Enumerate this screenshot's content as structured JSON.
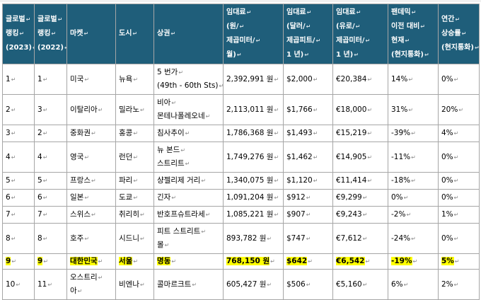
{
  "headers": [
    [
      "글로벌",
      "랭킹",
      "(2023)"
    ],
    [
      "글로벌",
      "랭킹",
      "(2022)"
    ],
    [
      "마켓"
    ],
    [
      "도시"
    ],
    [
      "상권"
    ],
    [
      "임대료",
      "(원/",
      "제곱미터/",
      "월)"
    ],
    [
      "임대료",
      "(달러/",
      "제곱피트/",
      "1 년)"
    ],
    [
      "임대료",
      "(유로/",
      "제곱미터/",
      "1 년)"
    ],
    [
      "팬데믹",
      "이전 대비",
      "현재",
      "(현지통화)"
    ],
    [
      "연간",
      "상승률",
      "(현지통화)"
    ]
  ],
  "rows": [
    {
      "cells": [
        [
          "1"
        ],
        [
          "1"
        ],
        [
          "미국"
        ],
        [
          "뉴욕"
        ],
        [
          "5 번가",
          "(49th - 60th Sts)"
        ],
        [
          "2,392,991 원"
        ],
        [
          "$2,000"
        ],
        [
          "€20,384"
        ],
        [
          "14%"
        ],
        [
          "0%"
        ]
      ],
      "highlight": false
    },
    {
      "cells": [
        [
          "2"
        ],
        [
          "3"
        ],
        [
          "이탈리아"
        ],
        [
          "밀라노"
        ],
        [
          "비아",
          "몬테나폴레오네"
        ],
        [
          "2,113,011 원"
        ],
        [
          "$1,766"
        ],
        [
          "€18,000"
        ],
        [
          "31%"
        ],
        [
          "20%"
        ]
      ],
      "highlight": false
    },
    {
      "cells": [
        [
          "3"
        ],
        [
          "2"
        ],
        [
          "중화권"
        ],
        [
          "홍콩"
        ],
        [
          "침사추이"
        ],
        [
          "1,786,368 원"
        ],
        [
          "$1,493"
        ],
        [
          "€15,219"
        ],
        [
          "-39%"
        ],
        [
          "4%"
        ]
      ],
      "highlight": false
    },
    {
      "cells": [
        [
          "4"
        ],
        [
          "4"
        ],
        [
          "영국"
        ],
        [
          "런던"
        ],
        [
          "뉴 본드",
          "스트리트"
        ],
        [
          "1,749,276 원"
        ],
        [
          "$1,462"
        ],
        [
          "€14,905"
        ],
        [
          "-11%"
        ],
        [
          "0%"
        ]
      ],
      "highlight": false
    },
    {
      "cells": [
        [
          "5"
        ],
        [
          "5"
        ],
        [
          "프랑스"
        ],
        [
          "파리"
        ],
        [
          "샹젤리제 거리"
        ],
        [
          "1,340,075 원"
        ],
        [
          "$1,120"
        ],
        [
          "€11,414"
        ],
        [
          "-18%"
        ],
        [
          "0%"
        ]
      ],
      "highlight": false
    },
    {
      "cells": [
        [
          "6"
        ],
        [
          "6"
        ],
        [
          "일본"
        ],
        [
          "도쿄"
        ],
        [
          "긴자"
        ],
        [
          "1,091,204 원"
        ],
        [
          "$912"
        ],
        [
          "€9,299"
        ],
        [
          "0%"
        ],
        [
          "0%"
        ]
      ],
      "highlight": false
    },
    {
      "cells": [
        [
          "7"
        ],
        [
          "7"
        ],
        [
          "스위스"
        ],
        [
          "취리히"
        ],
        [
          "반호프슈트라세"
        ],
        [
          "1,085,221 원"
        ],
        [
          "$907"
        ],
        [
          "€9,243"
        ],
        [
          "-2%"
        ],
        [
          "1%"
        ]
      ],
      "highlight": false
    },
    {
      "cells": [
        [
          "8"
        ],
        [
          "8"
        ],
        [
          "호주"
        ],
        [
          "시드니"
        ],
        [
          "피트 스트리트",
          "몰"
        ],
        [
          "893,782 원"
        ],
        [
          "$747"
        ],
        [
          "€7,612"
        ],
        [
          "-24%"
        ],
        [
          "0%"
        ]
      ],
      "highlight": false
    },
    {
      "cells": [
        [
          "9"
        ],
        [
          "9"
        ],
        [
          "대한민국"
        ],
        [
          "서울"
        ],
        [
          "명동"
        ],
        [
          "768,150 원"
        ],
        [
          "$642"
        ],
        [
          "€6,542"
        ],
        [
          "-19%"
        ],
        [
          "5%"
        ]
      ],
      "highlight": true
    },
    {
      "cells": [
        [
          "10"
        ],
        [
          "11"
        ],
        [
          "오스트리",
          "아"
        ],
        [
          "비엔나"
        ],
        [
          "콜마르크트"
        ],
        [
          "605,427 원"
        ],
        [
          "$506"
        ],
        [
          "€5,160"
        ],
        [
          "6%"
        ],
        [
          "2%"
        ]
      ],
      "highlight": false
    }
  ]
}
